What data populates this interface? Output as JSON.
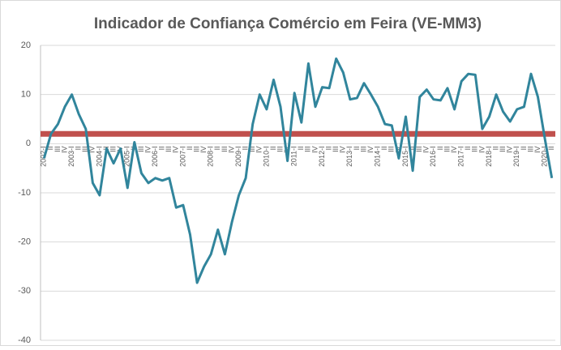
{
  "chart_data": {
    "type": "line",
    "title": "Indicador de Confiança Comércio em Feira (VE-MM3)",
    "categories": [
      "2002-I",
      "II",
      "III",
      "IV",
      "2003-I",
      "II",
      "III",
      "IV",
      "2004-I",
      "II",
      "III",
      "IV",
      "2005-I",
      "II",
      "III",
      "IV",
      "2006-I",
      "II",
      "III",
      "IV",
      "2007-I",
      "II",
      "III",
      "IV",
      "2008-I",
      "II",
      "III",
      "IV",
      "2009-I",
      "II",
      "III",
      "IV",
      "2010-I",
      "II",
      "III",
      "IV",
      "2011-I",
      "II",
      "III",
      "IV",
      "2012-I",
      "II",
      "III",
      "IV",
      "2013-I",
      "II",
      "III",
      "IV",
      "2014-I",
      "II",
      "III",
      "IV",
      "2015-I",
      "II",
      "III",
      "IV",
      "2016-I",
      "II",
      "III",
      "IV",
      "2017-I",
      "II",
      "III",
      "IV",
      "2018-I",
      "II",
      "III",
      "IV",
      "2019-I",
      "II",
      "III",
      "IV",
      "2020-I",
      "II"
    ],
    "series": [
      {
        "color": "#31859c",
        "values": [
          -3,
          2,
          4,
          7.5,
          10,
          6,
          3,
          -8,
          -10.5,
          -1,
          -4,
          -1,
          -9,
          0.3,
          -6,
          -8,
          -7,
          -7.5,
          -7,
          -13,
          -12.5,
          -18.5,
          -28.3,
          -25,
          -22.5,
          -17.5,
          -22.5,
          -16,
          -10.5,
          -7,
          4,
          10,
          7,
          13,
          7.5,
          -3.5,
          10.3,
          4.3,
          16.3,
          7.5,
          11.5,
          11.3,
          17.3,
          14.5,
          9,
          9.3,
          12.3,
          10,
          7.5,
          4,
          3.7,
          -3,
          5.5,
          -5.5,
          9.5,
          11,
          9,
          8.8,
          11.3,
          7,
          12.7,
          14.2,
          14,
          3,
          5.5,
          10,
          6.5,
          4.5,
          7,
          7.5,
          14.2,
          9.5,
          1,
          -7
        ]
      }
    ],
    "reference_line": {
      "value": 2,
      "color": "#c0504d"
    },
    "ylim": [
      -40,
      20
    ],
    "yticks": [
      -40,
      -30,
      -20,
      -10,
      0,
      10,
      20
    ],
    "grid": true
  }
}
